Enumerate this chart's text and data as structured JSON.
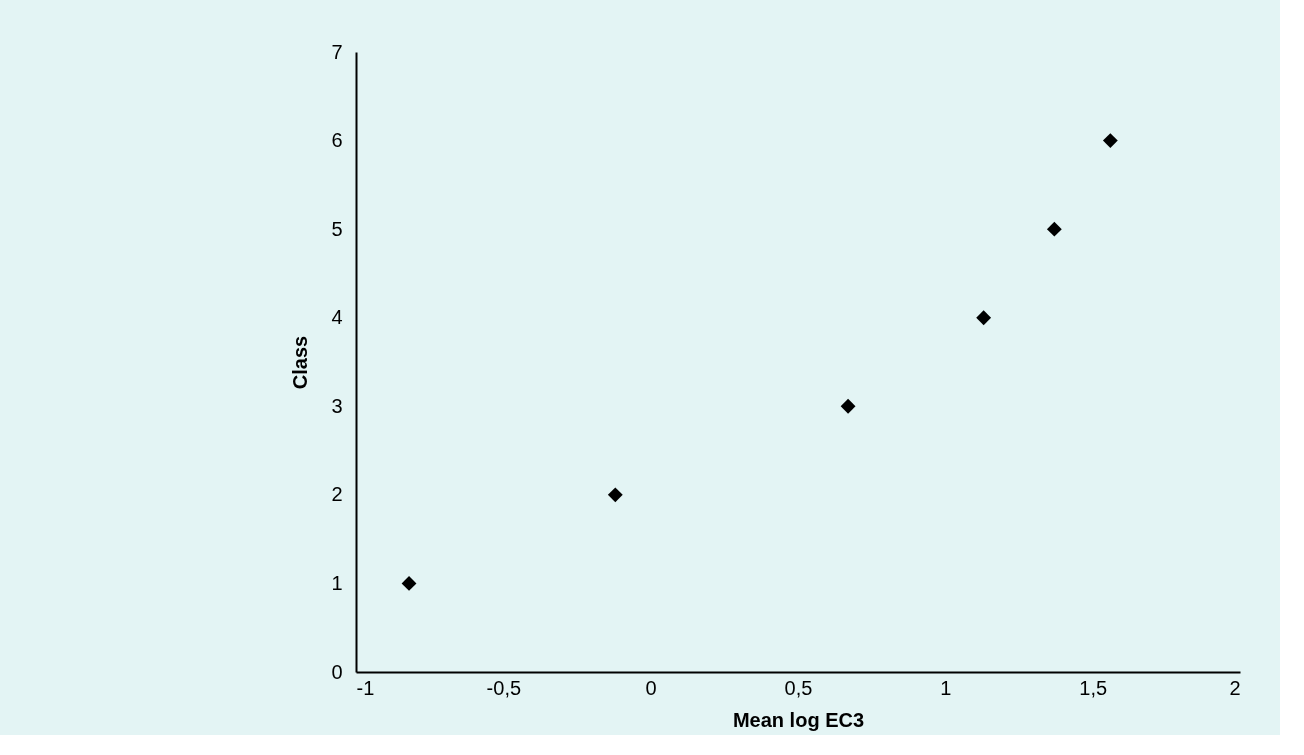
{
  "chart_data": {
    "type": "scatter",
    "xlabel": "Mean log EC3",
    "ylabel": "Class",
    "x": [
      -0.82,
      -0.12,
      0.67,
      1.13,
      1.37,
      1.56
    ],
    "series": [
      {
        "color": "#000000",
        "values": [
          1,
          2,
          3,
          4,
          5,
          6
        ]
      }
    ],
    "xlim": [
      -1,
      2
    ],
    "xticks": [
      -1,
      {
        "value": -0.5,
        "label": "-0,5"
      },
      0,
      {
        "value": 0.5,
        "label": "0,5"
      },
      1,
      {
        "value": 1.5,
        "label": "1,5"
      },
      2
    ],
    "ylim": [
      0,
      7
    ],
    "yticks": [
      0,
      1,
      2,
      3,
      4,
      5,
      6,
      7
    ],
    "marker": "diamond",
    "grid": false,
    "legend": false
  }
}
